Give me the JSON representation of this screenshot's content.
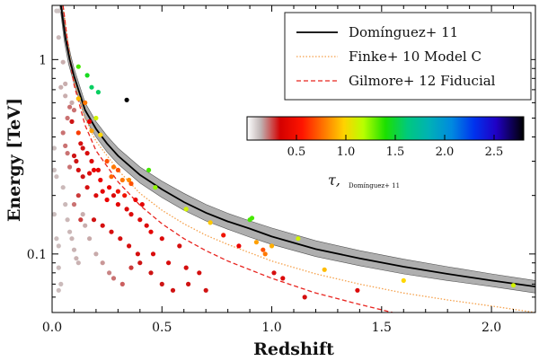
{
  "chart_data": {
    "type": "scatter",
    "xlabel": "Redshift",
    "ylabel": "Energy [TeV]",
    "xlim": [
      0,
      2.2
    ],
    "ylim": [
      0.05,
      1.9
    ],
    "yscale": "log",
    "x_ticks": [
      0.0,
      0.5,
      1.0,
      1.5,
      2.0
    ],
    "x_tick_labels": [
      "0.0",
      "0.5",
      "1.0",
      "1.5",
      "2.0"
    ],
    "y_ticks": [
      0.1,
      1
    ],
    "y_tick_labels": [
      "0.1",
      "1"
    ],
    "legend": {
      "placement": "top-right",
      "entries": [
        {
          "label": "Domínguez+ 11",
          "color": "#000000",
          "style": "solid"
        },
        {
          "label": "Finke+ 10 Model C",
          "color": "#f5a04a",
          "style": "dotted"
        },
        {
          "label": "Gilmore+ 12 Fiducial",
          "color": "#e8241f",
          "style": "dashed"
        }
      ]
    },
    "colorbar": {
      "range": [
        0,
        2.8
      ],
      "ticks": [
        0.5,
        1.0,
        1.5,
        2.0,
        2.5
      ],
      "tick_labels": [
        "0.5",
        "1.0",
        "1.5",
        "2.0",
        "2.5"
      ],
      "label_main": "τ,",
      "label_sub": "Domínguez+ 11"
    },
    "curves": {
      "dominguez": [
        [
          0.04,
          1.9
        ],
        [
          0.06,
          1.3
        ],
        [
          0.08,
          1.0
        ],
        [
          0.1,
          0.82
        ],
        [
          0.15,
          0.55
        ],
        [
          0.2,
          0.44
        ],
        [
          0.25,
          0.37
        ],
        [
          0.3,
          0.32
        ],
        [
          0.4,
          0.255
        ],
        [
          0.5,
          0.215
        ],
        [
          0.6,
          0.185
        ],
        [
          0.7,
          0.163
        ],
        [
          0.8,
          0.147
        ],
        [
          0.9,
          0.135
        ],
        [
          1.0,
          0.123
        ],
        [
          1.2,
          0.106
        ],
        [
          1.4,
          0.095
        ],
        [
          1.6,
          0.086
        ],
        [
          1.8,
          0.079
        ],
        [
          2.0,
          0.073
        ],
        [
          2.2,
          0.068
        ]
      ],
      "dominguez_band_upper": [
        [
          0.045,
          1.9
        ],
        [
          0.065,
          1.35
        ],
        [
          0.085,
          1.05
        ],
        [
          0.1,
          0.9
        ],
        [
          0.15,
          0.6
        ],
        [
          0.2,
          0.48
        ],
        [
          0.25,
          0.405
        ],
        [
          0.3,
          0.35
        ],
        [
          0.4,
          0.28
        ],
        [
          0.5,
          0.237
        ],
        [
          0.6,
          0.205
        ],
        [
          0.7,
          0.18
        ],
        [
          0.8,
          0.162
        ],
        [
          0.9,
          0.148
        ],
        [
          1.0,
          0.136
        ],
        [
          1.2,
          0.117
        ],
        [
          1.4,
          0.104
        ],
        [
          1.6,
          0.094
        ],
        [
          1.8,
          0.086
        ],
        [
          2.0,
          0.079
        ],
        [
          2.2,
          0.073
        ]
      ],
      "dominguez_band_lower": [
        [
          0.035,
          1.9
        ],
        [
          0.055,
          1.25
        ],
        [
          0.075,
          0.95
        ],
        [
          0.1,
          0.75
        ],
        [
          0.15,
          0.5
        ],
        [
          0.2,
          0.4
        ],
        [
          0.25,
          0.335
        ],
        [
          0.3,
          0.29
        ],
        [
          0.4,
          0.232
        ],
        [
          0.5,
          0.195
        ],
        [
          0.6,
          0.168
        ],
        [
          0.7,
          0.148
        ],
        [
          0.8,
          0.134
        ],
        [
          0.9,
          0.122
        ],
        [
          1.0,
          0.112
        ],
        [
          1.2,
          0.097
        ],
        [
          1.4,
          0.087
        ],
        [
          1.6,
          0.079
        ],
        [
          1.8,
          0.073
        ],
        [
          2.0,
          0.068
        ],
        [
          2.2,
          0.063
        ]
      ],
      "finke": [
        [
          0.05,
          1.9
        ],
        [
          0.08,
          1.05
        ],
        [
          0.1,
          0.78
        ],
        [
          0.15,
          0.5
        ],
        [
          0.2,
          0.38
        ],
        [
          0.3,
          0.27
        ],
        [
          0.4,
          0.205
        ],
        [
          0.5,
          0.168
        ],
        [
          0.6,
          0.143
        ],
        [
          0.7,
          0.125
        ],
        [
          0.8,
          0.112
        ],
        [
          1.0,
          0.092
        ],
        [
          1.2,
          0.079
        ],
        [
          1.4,
          0.07
        ],
        [
          1.6,
          0.063
        ],
        [
          1.8,
          0.058
        ],
        [
          2.0,
          0.054
        ],
        [
          2.2,
          0.05
        ]
      ],
      "gilmore": [
        [
          0.05,
          1.9
        ],
        [
          0.08,
          1.0
        ],
        [
          0.1,
          0.74
        ],
        [
          0.15,
          0.46
        ],
        [
          0.2,
          0.34
        ],
        [
          0.3,
          0.235
        ],
        [
          0.4,
          0.178
        ],
        [
          0.5,
          0.143
        ],
        [
          0.6,
          0.12
        ],
        [
          0.7,
          0.104
        ],
        [
          0.8,
          0.092
        ],
        [
          1.0,
          0.075
        ],
        [
          1.2,
          0.063
        ],
        [
          1.4,
          0.055
        ],
        [
          1.55,
          0.05
        ]
      ]
    },
    "points": [
      [
        0.02,
        1.78,
        0.0
      ],
      [
        0.03,
        1.78,
        0.0
      ],
      [
        0.03,
        1.3,
        0.05
      ],
      [
        0.05,
        0.97,
        0.1
      ],
      [
        0.04,
        0.72,
        0.1
      ],
      [
        0.06,
        0.65,
        0.1
      ],
      [
        0.08,
        0.57,
        0.15
      ],
      [
        0.07,
        0.5,
        0.15
      ],
      [
        0.09,
        0.48,
        0.2
      ],
      [
        0.12,
        0.92,
        1.3
      ],
      [
        0.16,
        0.83,
        1.4
      ],
      [
        0.18,
        0.72,
        1.5
      ],
      [
        0.21,
        0.68,
        1.5
      ],
      [
        0.12,
        0.63,
        0.9
      ],
      [
        0.15,
        0.6,
        0.7
      ],
      [
        0.2,
        0.5,
        1.1
      ],
      [
        0.17,
        0.48,
        0.4
      ],
      [
        0.12,
        0.42,
        0.55
      ],
      [
        0.18,
        0.43,
        0.8
      ],
      [
        0.22,
        0.41,
        1.0
      ],
      [
        0.34,
        0.62,
        2.9
      ],
      [
        0.05,
        0.42,
        0.15
      ],
      [
        0.06,
        0.36,
        0.15
      ],
      [
        0.07,
        0.33,
        0.15
      ],
      [
        0.1,
        0.32,
        0.2
      ],
      [
        0.11,
        0.3,
        0.2
      ],
      [
        0.08,
        0.28,
        0.15
      ],
      [
        0.12,
        0.27,
        0.25
      ],
      [
        0.14,
        0.25,
        0.2
      ],
      [
        0.17,
        0.26,
        0.3
      ],
      [
        0.19,
        0.27,
        0.4
      ],
      [
        0.25,
        0.3,
        0.6
      ],
      [
        0.28,
        0.28,
        0.7
      ],
      [
        0.3,
        0.27,
        0.6
      ],
      [
        0.27,
        0.25,
        0.65
      ],
      [
        0.32,
        0.24,
        0.7
      ],
      [
        0.35,
        0.24,
        0.75
      ],
      [
        0.36,
        0.23,
        0.6
      ],
      [
        0.44,
        0.27,
        1.3
      ],
      [
        0.47,
        0.22,
        1.2
      ],
      [
        0.2,
        0.2,
        0.3
      ],
      [
        0.23,
        0.21,
        0.35
      ],
      [
        0.25,
        0.19,
        0.4
      ],
      [
        0.28,
        0.2,
        0.3
      ],
      [
        0.3,
        0.18,
        0.35
      ],
      [
        0.34,
        0.17,
        0.3
      ],
      [
        0.36,
        0.16,
        0.3
      ],
      [
        0.4,
        0.15,
        0.3
      ],
      [
        0.43,
        0.14,
        0.3
      ],
      [
        0.45,
        0.13,
        0.35
      ],
      [
        0.5,
        0.12,
        0.3
      ],
      [
        0.58,
        0.11,
        0.25
      ],
      [
        0.61,
        0.17,
        1.1
      ],
      [
        0.72,
        0.145,
        0.95
      ],
      [
        0.9,
        0.15,
        1.3
      ],
      [
        0.91,
        0.153,
        1.3
      ],
      [
        0.78,
        0.125,
        0.45
      ],
      [
        0.85,
        0.11,
        0.4
      ],
      [
        0.93,
        0.115,
        0.8
      ],
      [
        0.96,
        0.105,
        0.6
      ],
      [
        1.0,
        0.11,
        0.85
      ],
      [
        1.12,
        0.12,
        1.1
      ],
      [
        1.01,
        0.08,
        0.25
      ],
      [
        1.05,
        0.075,
        0.3
      ],
      [
        1.15,
        0.06,
        0.25
      ],
      [
        1.24,
        0.083,
        0.9
      ],
      [
        1.39,
        0.065,
        0.3
      ],
      [
        1.6,
        0.073,
        1.0
      ],
      [
        2.1,
        0.069,
        1.1
      ],
      [
        0.97,
        0.1,
        0.7
      ],
      [
        0.01,
        0.35,
        0.02
      ],
      [
        0.01,
        0.27,
        0.02
      ],
      [
        0.02,
        0.25,
        0.03
      ],
      [
        0.01,
        0.16,
        0.02
      ],
      [
        0.02,
        0.12,
        0.03
      ],
      [
        0.03,
        0.11,
        0.03
      ],
      [
        0.03,
        0.085,
        0.04
      ],
      [
        0.04,
        0.07,
        0.04
      ],
      [
        0.03,
        0.065,
        0.03
      ],
      [
        0.05,
        0.22,
        0.05
      ],
      [
        0.06,
        0.18,
        0.05
      ],
      [
        0.07,
        0.15,
        0.06
      ],
      [
        0.08,
        0.13,
        0.06
      ],
      [
        0.09,
        0.12,
        0.07
      ],
      [
        0.1,
        0.105,
        0.07
      ],
      [
        0.11,
        0.095,
        0.08
      ],
      [
        0.12,
        0.09,
        0.08
      ],
      [
        0.14,
        0.16,
        0.1
      ],
      [
        0.15,
        0.14,
        0.1
      ],
      [
        0.17,
        0.12,
        0.12
      ],
      [
        0.2,
        0.1,
        0.12
      ],
      [
        0.23,
        0.09,
        0.13
      ],
      [
        0.26,
        0.08,
        0.14
      ],
      [
        0.28,
        0.075,
        0.15
      ],
      [
        0.32,
        0.07,
        0.16
      ],
      [
        0.36,
        0.085,
        0.18
      ],
      [
        0.4,
        0.09,
        0.2
      ],
      [
        0.45,
        0.08,
        0.2
      ],
      [
        0.5,
        0.07,
        0.2
      ],
      [
        0.55,
        0.065,
        0.22
      ],
      [
        0.62,
        0.07,
        0.22
      ],
      [
        0.7,
        0.065,
        0.22
      ],
      [
        0.06,
        0.75,
        0.1
      ],
      [
        0.09,
        0.6,
        0.12
      ],
      [
        0.1,
        0.55,
        0.15
      ],
      [
        0.13,
        0.37,
        0.25
      ],
      [
        0.14,
        0.35,
        0.22
      ],
      [
        0.16,
        0.33,
        0.28
      ],
      [
        0.18,
        0.3,
        0.3
      ],
      [
        0.21,
        0.27,
        0.35
      ],
      [
        0.22,
        0.24,
        0.4
      ],
      [
        0.26,
        0.22,
        0.4
      ],
      [
        0.3,
        0.21,
        0.45
      ],
      [
        0.33,
        0.2,
        0.45
      ],
      [
        0.38,
        0.19,
        0.4
      ],
      [
        0.41,
        0.18,
        0.35
      ],
      [
        0.16,
        0.22,
        0.25
      ],
      [
        0.12,
        0.2,
        0.18
      ],
      [
        0.1,
        0.18,
        0.15
      ],
      [
        0.13,
        0.15,
        0.18
      ],
      [
        0.19,
        0.15,
        0.22
      ],
      [
        0.23,
        0.14,
        0.25
      ],
      [
        0.27,
        0.13,
        0.25
      ],
      [
        0.31,
        0.12,
        0.25
      ],
      [
        0.35,
        0.11,
        0.25
      ],
      [
        0.39,
        0.1,
        0.25
      ],
      [
        0.46,
        0.1,
        0.28
      ],
      [
        0.53,
        0.09,
        0.28
      ],
      [
        0.61,
        0.085,
        0.25
      ],
      [
        0.67,
        0.08,
        0.25
      ]
    ]
  }
}
